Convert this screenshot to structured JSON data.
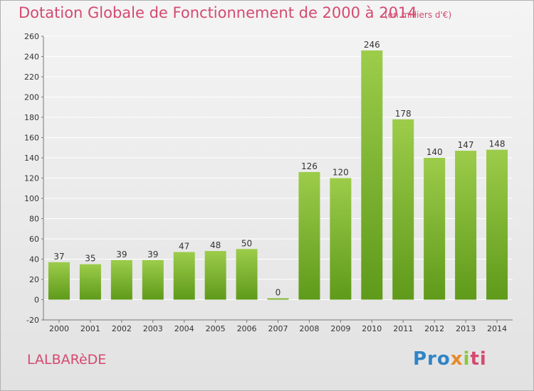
{
  "title": "Dotation Globale de Fonctionnement de 2000 à 2014",
  "subtitle": "(en milliers d'€)",
  "commune": "LALBARèDE",
  "logo": {
    "text": "Proxiti",
    "colors": [
      "#2f84c6",
      "#e8892b",
      "#8cc63f",
      "#d44a6f"
    ]
  },
  "colors": {
    "bar_top": "#9ccc4a",
    "bar_bottom": "#5f9a1a",
    "title": "#d44a6f",
    "grid": "#ffffff"
  },
  "chart_data": {
    "type": "bar",
    "categories": [
      "2000",
      "2001",
      "2002",
      "2003",
      "2004",
      "2005",
      "2006",
      "2007",
      "2008",
      "2009",
      "2010",
      "2011",
      "2012",
      "2013",
      "2014"
    ],
    "values": [
      37,
      35,
      39,
      39,
      47,
      48,
      50,
      0,
      126,
      120,
      246,
      178,
      140,
      147,
      148
    ],
    "ylim": [
      -20,
      260
    ],
    "yticks": [
      -20,
      0,
      20,
      40,
      60,
      80,
      100,
      120,
      140,
      160,
      180,
      200,
      220,
      240,
      260
    ],
    "grid": true,
    "legend": "none"
  }
}
